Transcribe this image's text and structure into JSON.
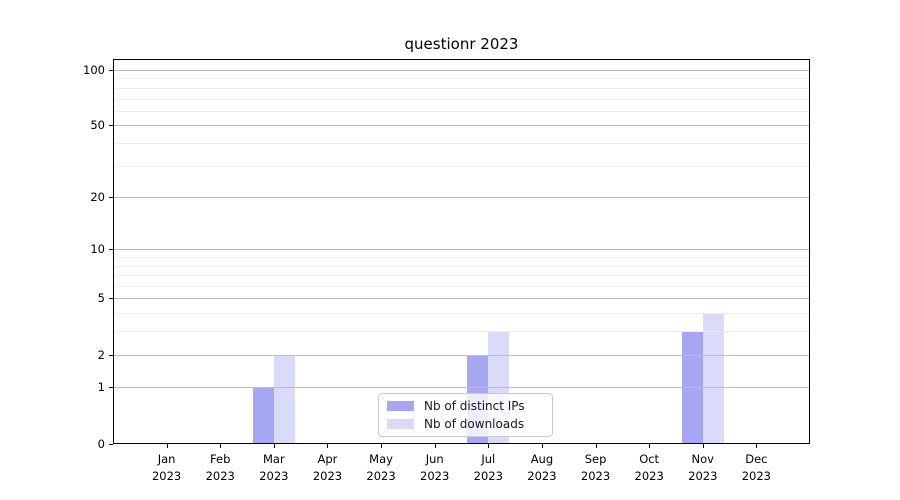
{
  "title": "questionr 2023",
  "chart_data": {
    "type": "bar",
    "title": "questionr 2023",
    "xlabel": "",
    "ylabel": "",
    "categories": [
      "Jan",
      "Feb",
      "Mar",
      "Apr",
      "May",
      "Jun",
      "Jul",
      "Aug",
      "Sep",
      "Oct",
      "Nov",
      "Dec"
    ],
    "year_label": "2023",
    "series": [
      {
        "name": "Nb of distinct IPs",
        "color": "#a6a6f2",
        "values": [
          0,
          0,
          1,
          0,
          0,
          0,
          2,
          0,
          0,
          0,
          3,
          0
        ]
      },
      {
        "name": "Nb of downloads",
        "color": "#dadaf9",
        "values": [
          0,
          0,
          2,
          0,
          0,
          0,
          3,
          0,
          0,
          0,
          4,
          0
        ]
      }
    ],
    "yscale": "log1p",
    "ylim": [
      0,
      115
    ],
    "y_major_ticks": [
      0,
      1,
      2,
      5,
      10,
      20,
      50,
      100
    ],
    "y_minor_gridlines": [
      3,
      4,
      6,
      7,
      8,
      9,
      30,
      40,
      60,
      70,
      80,
      90
    ],
    "grid": "horizontal",
    "legend_position": "lower-center-inside"
  },
  "colors": {
    "grid_major": "#bdbdbd",
    "grid_minor": "#ececec",
    "axis": "#000000",
    "legend_border": "#cccccc",
    "background": "#ffffff"
  }
}
